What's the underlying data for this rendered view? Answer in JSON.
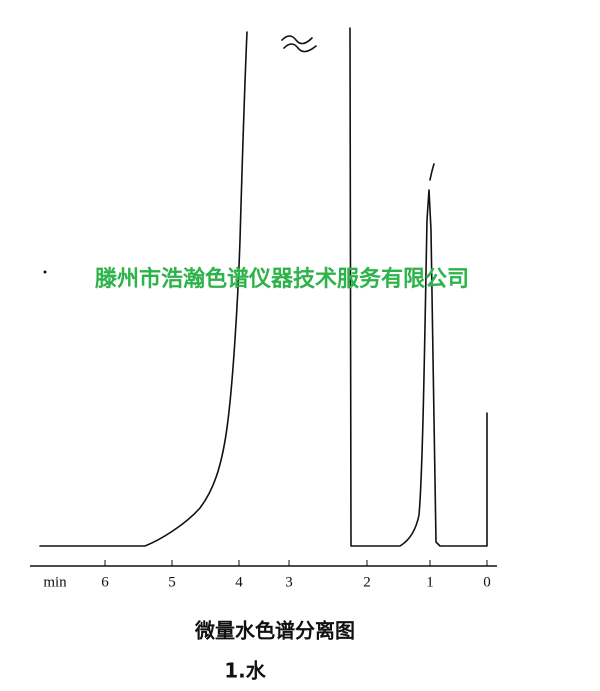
{
  "axis_label": "min",
  "ticks": [
    6,
    5,
    4,
    3,
    2,
    1,
    0
  ],
  "watermark": "滕州市浩瀚色谱仪器技术服务有限公司",
  "caption": "微量水色谱分离图",
  "subtitle": "1.水"
}
